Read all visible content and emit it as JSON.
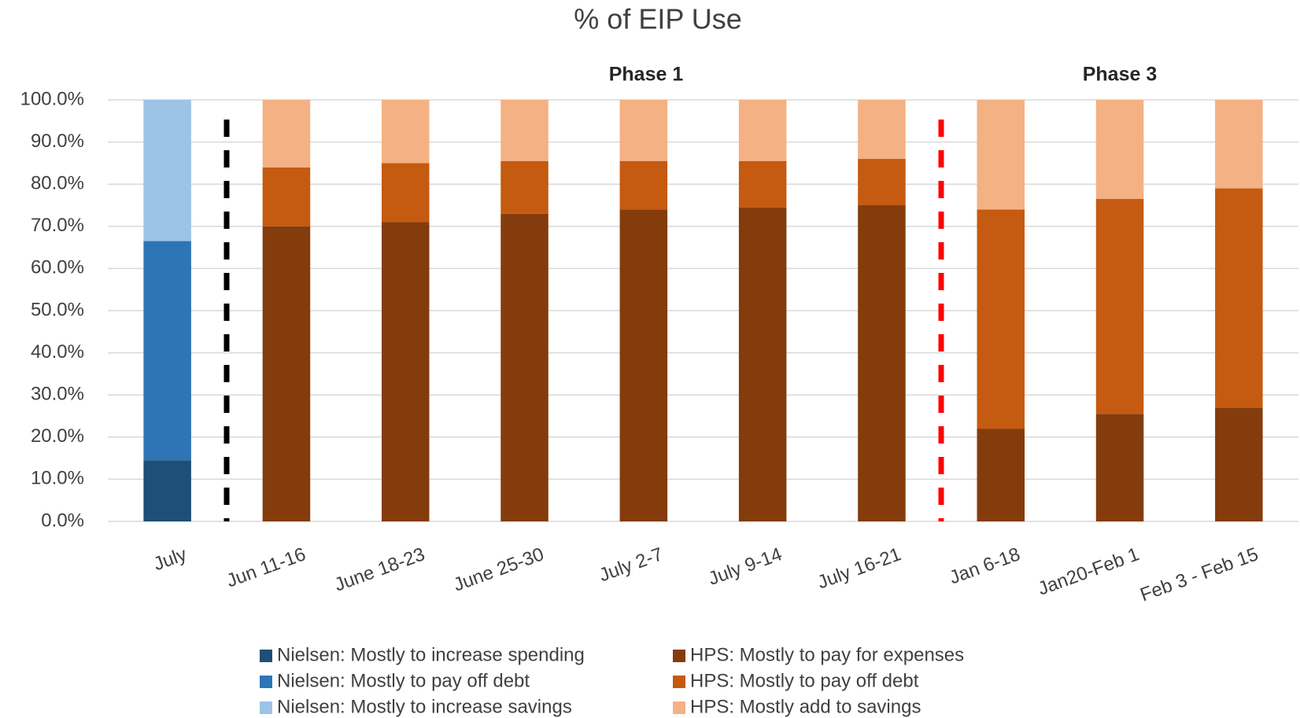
{
  "chart_data": {
    "type": "stacked_bar",
    "title": "% of EIP Use",
    "annotations": [
      "Phase 1",
      "Phase 3"
    ],
    "categories": [
      "July",
      "Jun 11-16",
      "June 18-23",
      "June 25-30",
      "July 2-7",
      "July 9-14",
      "July 16-21",
      "Jan 6-18",
      "Jan20-Feb 1",
      "Feb 3 - Feb 15"
    ],
    "series": [
      {
        "name": "Nielsen: Mostly to increase spending",
        "color": "#1f4e79",
        "values": [
          14.5,
          null,
          null,
          null,
          null,
          null,
          null,
          null,
          null,
          null
        ]
      },
      {
        "name": "Nielsen: Mostly to pay off debt",
        "color": "#2e75b6",
        "values": [
          52,
          null,
          null,
          null,
          null,
          null,
          null,
          null,
          null,
          null
        ]
      },
      {
        "name": "Nielsen: Mostly to increase savings",
        "color": "#9dc3e6",
        "values": [
          33.5,
          null,
          null,
          null,
          null,
          null,
          null,
          null,
          null,
          null
        ]
      },
      {
        "name": "HPS: Mostly to pay for expenses",
        "color": "#843c0c",
        "values": [
          null,
          70,
          71,
          73,
          74,
          74.5,
          75,
          22,
          25.5,
          27
        ]
      },
      {
        "name": "HPS: Mostly to pay off debt",
        "color": "#c55a11",
        "values": [
          null,
          14,
          14,
          12.5,
          11.5,
          11,
          11,
          52,
          51,
          52
        ]
      },
      {
        "name": "HPS: Mostly add to savings",
        "color": "#f4b183",
        "values": [
          null,
          16,
          15,
          14.5,
          14.5,
          14.5,
          14,
          26,
          23.5,
          21
        ]
      }
    ],
    "ylim": [
      0,
      100
    ],
    "yticks": [
      {
        "value": 0,
        "label": "0.0%"
      },
      {
        "value": 10,
        "label": "10.0%"
      },
      {
        "value": 20,
        "label": "20.0%"
      },
      {
        "value": 30,
        "label": "30.0%"
      },
      {
        "value": 40,
        "label": "40.0%"
      },
      {
        "value": 50,
        "label": "50.0%"
      },
      {
        "value": 60,
        "label": "60.0%"
      },
      {
        "value": 70,
        "label": "70.0%"
      },
      {
        "value": 80,
        "label": "80.0%"
      },
      {
        "value": 90,
        "label": "90.0%"
      },
      {
        "value": 100,
        "label": "100.0%"
      }
    ],
    "grid": true,
    "legend": "bottom"
  }
}
